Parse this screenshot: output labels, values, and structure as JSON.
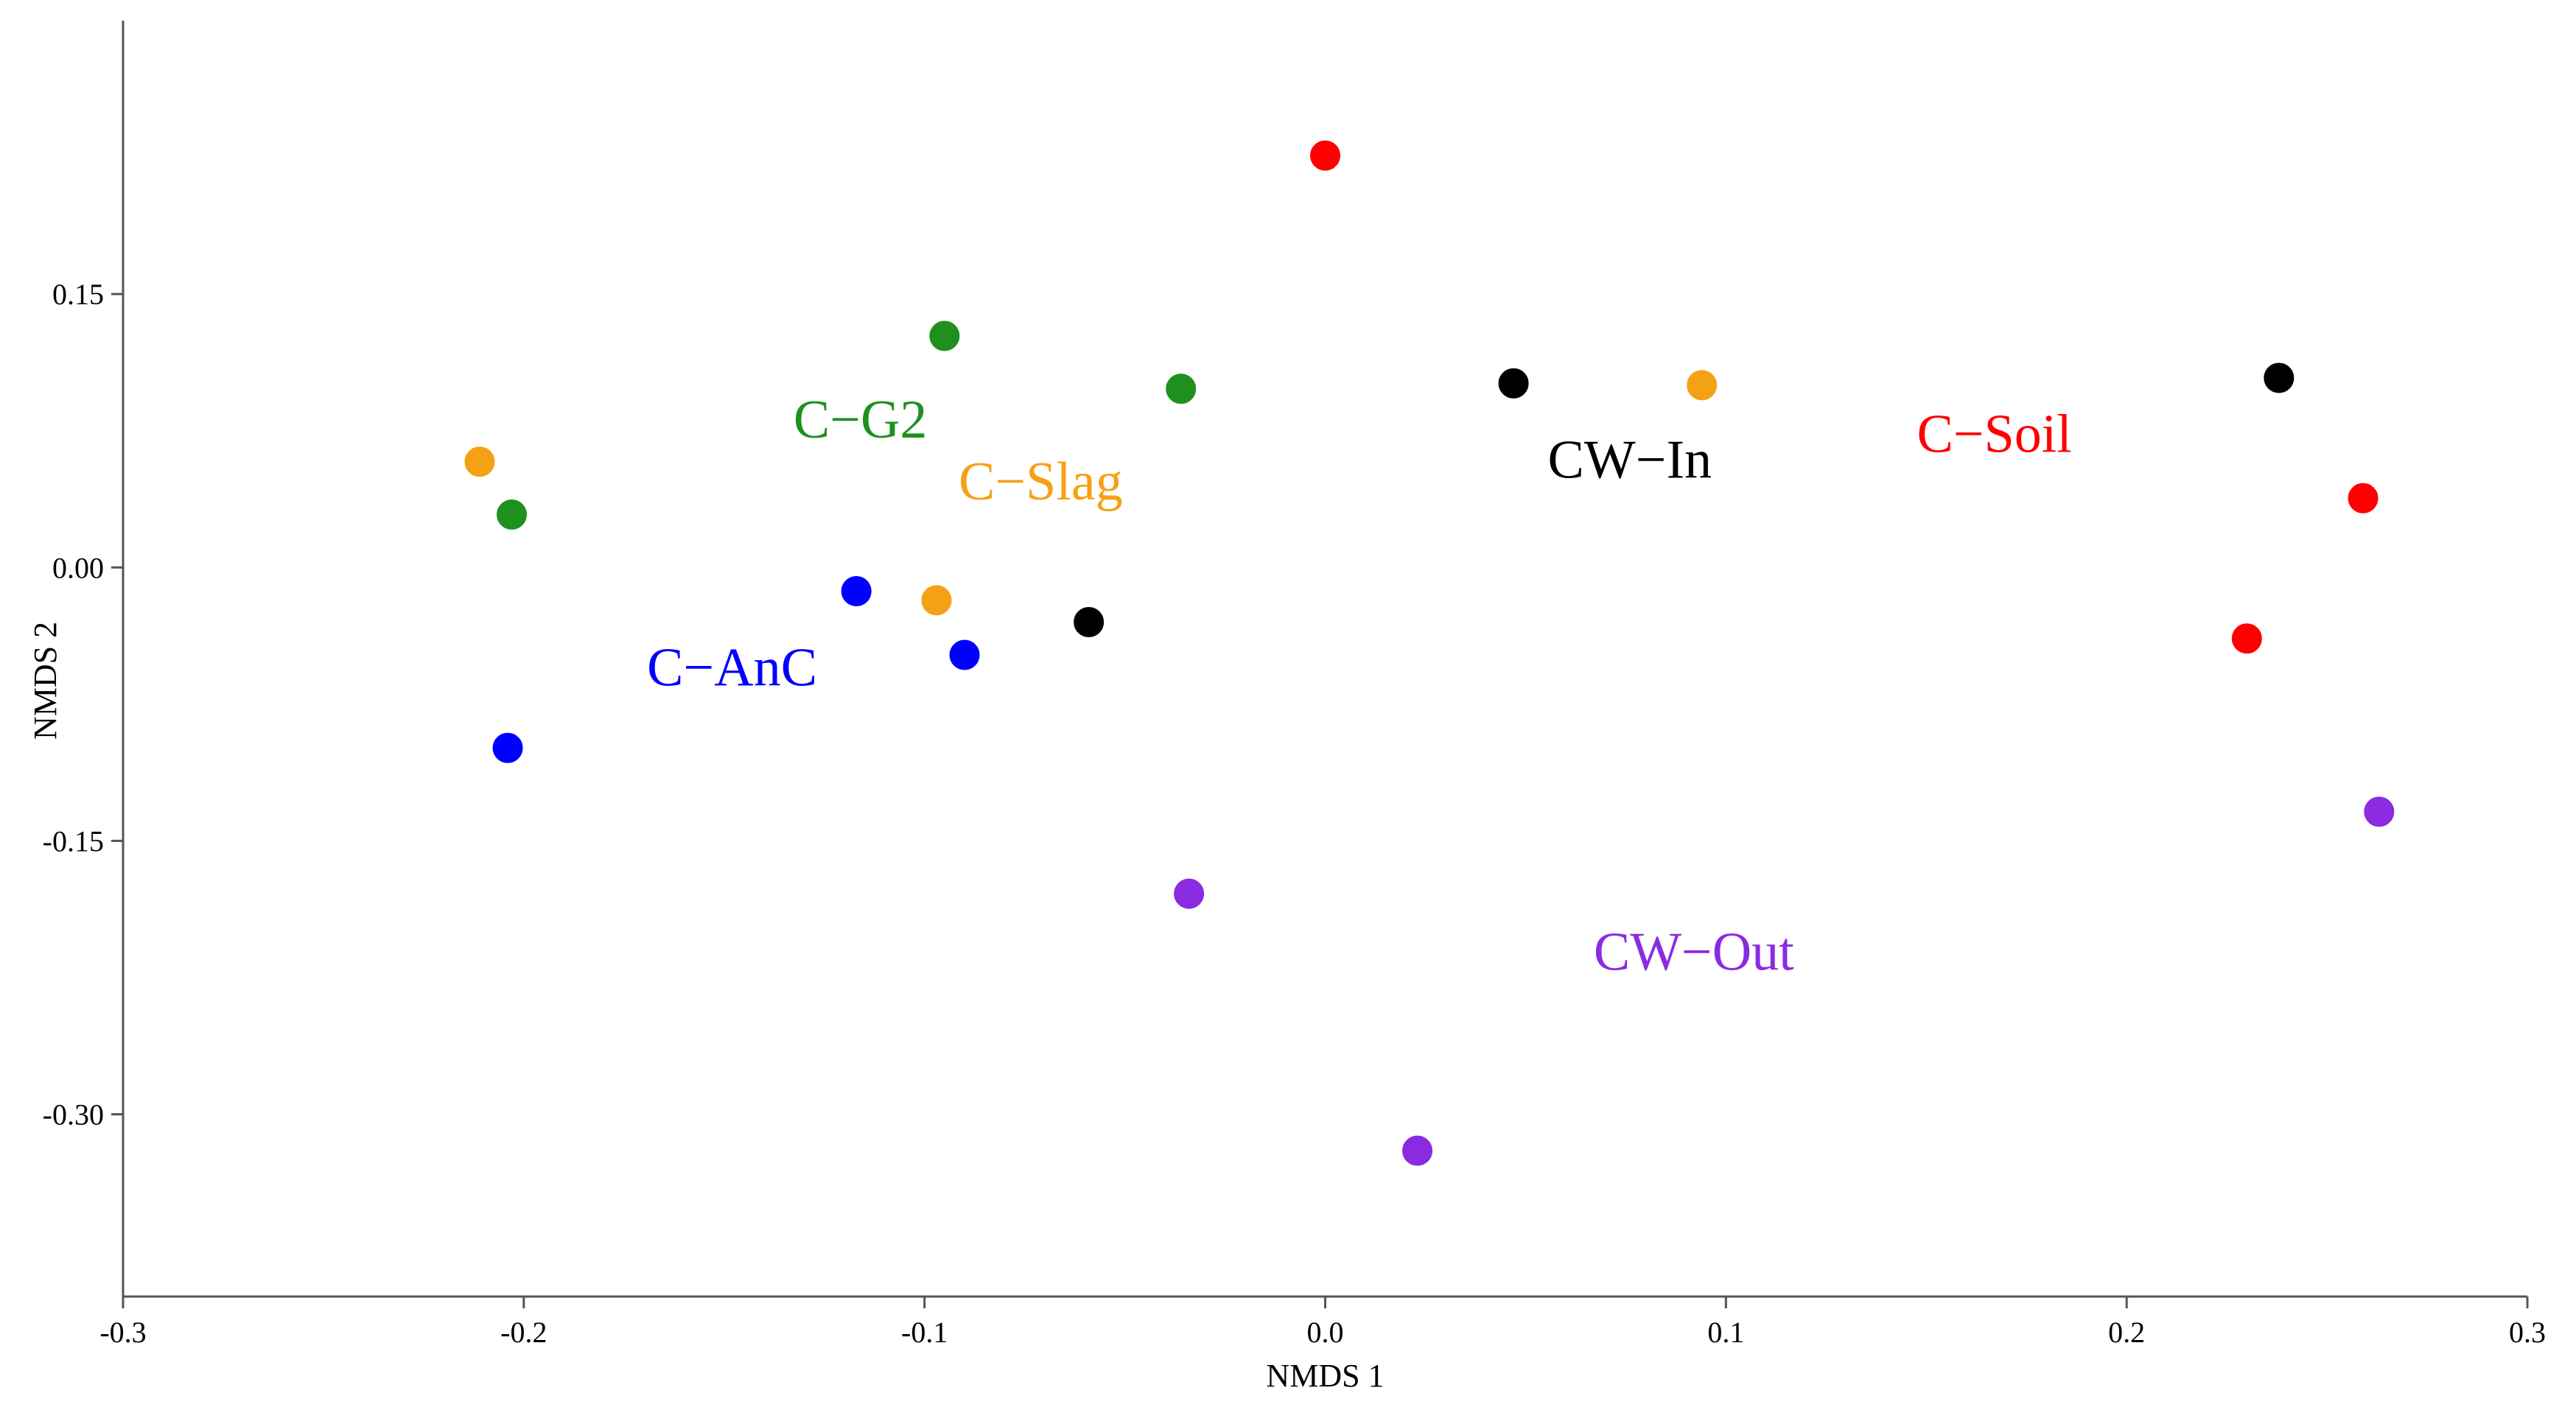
{
  "chart_data": {
    "type": "scatter",
    "title": "",
    "xlabel": "NMDS 1",
    "ylabel": "NMDS 2",
    "xlim": [
      -0.3,
      0.3
    ],
    "ylim": [
      -0.4,
      0.3
    ],
    "x_ticks": [
      -0.3,
      -0.2,
      -0.1,
      0.0,
      0.1,
      0.2,
      0.3
    ],
    "x_tick_labels": [
      "-0.3",
      "-0.2",
      "-0.1",
      "0.0",
      "0.1",
      "0.2",
      "0.3"
    ],
    "y_ticks": [
      -0.3,
      -0.15,
      0.0,
      0.15
    ],
    "y_tick_labels": [
      "-0.30",
      "-0.15",
      "0.00",
      "0.15"
    ],
    "grid": false,
    "series": [
      {
        "name": "C−Soil",
        "color": "#ff0000",
        "label_pos": [
          0.167,
          0.073
        ],
        "points": [
          [
            0.0,
            0.226
          ],
          [
            0.259,
            0.038
          ],
          [
            0.23,
            -0.039
          ]
        ]
      },
      {
        "name": "CW−In",
        "color": "#000000",
        "label_pos": [
          0.076,
          0.059
        ],
        "points": [
          [
            0.047,
            0.101
          ],
          [
            0.238,
            0.104
          ],
          [
            -0.059,
            -0.03
          ]
        ]
      },
      {
        "name": "C−Slag",
        "color": "#f5a115",
        "label_pos": [
          -0.071,
          0.047
        ],
        "points": [
          [
            -0.211,
            0.058
          ],
          [
            0.094,
            0.1
          ],
          [
            -0.097,
            -0.018
          ]
        ]
      },
      {
        "name": "C−G2",
        "color": "#1e901e",
        "label_pos": [
          -0.116,
          0.081
        ],
        "points": [
          [
            -0.095,
            0.127
          ],
          [
            -0.036,
            0.098
          ],
          [
            -0.203,
            0.029
          ]
        ]
      },
      {
        "name": "C−AnC",
        "color": "#0000ff",
        "label_pos": [
          -0.148,
          -0.055
        ],
        "points": [
          [
            -0.117,
            -0.013
          ],
          [
            -0.09,
            -0.048
          ],
          [
            -0.204,
            -0.099
          ]
        ]
      },
      {
        "name": "CW−Out",
        "color": "#8a2be2",
        "label_pos": [
          0.092,
          -0.211
        ],
        "points": [
          [
            -0.034,
            -0.179
          ],
          [
            0.023,
            -0.32
          ],
          [
            0.263,
            -0.134
          ]
        ]
      }
    ]
  }
}
